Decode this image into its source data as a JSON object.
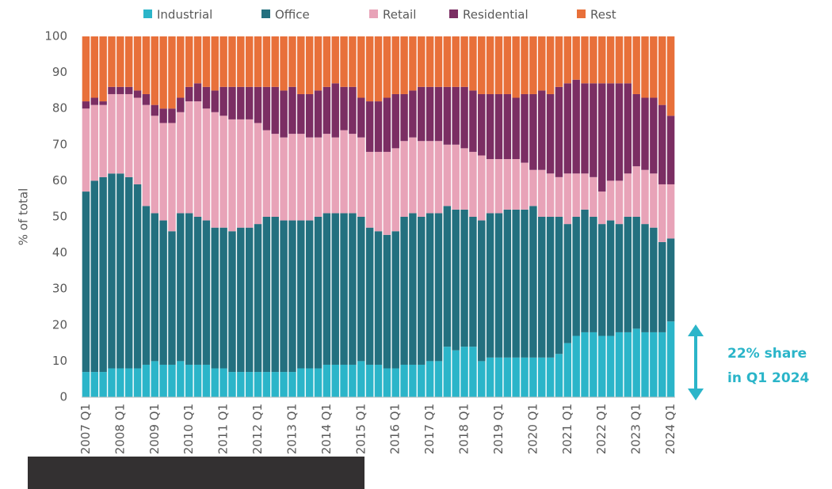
{
  "chart_data": {
    "type": "stacked_bar",
    "y_label": "% of total",
    "annotation": [
      "22% share",
      "in Q1 2024"
    ],
    "categories": [
      "2007 Q1",
      null,
      null,
      null,
      "2008 Q1",
      null,
      null,
      null,
      "2009 Q1",
      null,
      null,
      null,
      "2010 Q1",
      null,
      null,
      null,
      "2011 Q1",
      null,
      null,
      null,
      "2012 Q1",
      null,
      null,
      null,
      "2013 Q1",
      null,
      null,
      null,
      "2014 Q1",
      null,
      null,
      null,
      "2015 Q1",
      null,
      null,
      null,
      "2016 Q1",
      null,
      null,
      null,
      "2017 Q1",
      null,
      null,
      null,
      "2018 Q1",
      null,
      null,
      null,
      "2019 Q1",
      null,
      null,
      null,
      "2020 Q1",
      null,
      null,
      null,
      "2021 Q1",
      null,
      null,
      null,
      "2022 Q1",
      null,
      null,
      null,
      "2023 Q1",
      null,
      null,
      null,
      "2024 Q1"
    ],
    "series": [
      {
        "name": "Industrial",
        "color": "#2bb5c9",
        "values": [
          7,
          7,
          7,
          8,
          8,
          8,
          8,
          9,
          10,
          9,
          9,
          10,
          9,
          9,
          9,
          8,
          8,
          7,
          7,
          7,
          7,
          7,
          7,
          7,
          7,
          8,
          8,
          8,
          9,
          9,
          9,
          9,
          10,
          9,
          9,
          8,
          8,
          9,
          9,
          9,
          10,
          10,
          14,
          13,
          14,
          14,
          10,
          11,
          11,
          11,
          11,
          11,
          11,
          11,
          11,
          12,
          15,
          17,
          18,
          18,
          17,
          17,
          18,
          18,
          19,
          18,
          18,
          18,
          21
        ]
      },
      {
        "name": "Office",
        "color": "#23707f",
        "values": [
          50,
          53,
          54,
          54,
          54,
          53,
          51,
          44,
          41,
          40,
          37,
          41,
          42,
          41,
          40,
          39,
          39,
          39,
          40,
          40,
          41,
          43,
          43,
          42,
          42,
          41,
          41,
          42,
          42,
          42,
          42,
          42,
          40,
          38,
          37,
          37,
          38,
          41,
          42,
          41,
          41,
          41,
          39,
          39,
          38,
          36,
          39,
          40,
          40,
          41,
          41,
          41,
          42,
          39,
          39,
          38,
          33,
          33,
          34,
          32,
          31,
          32,
          30,
          32,
          31,
          30,
          29,
          25,
          23
        ]
      },
      {
        "name": "Retail",
        "color": "#e8a3b8",
        "values": [
          23,
          21,
          20,
          22,
          22,
          23,
          24,
          28,
          27,
          27,
          30,
          28,
          31,
          32,
          31,
          32,
          31,
          31,
          30,
          30,
          28,
          24,
          23,
          23,
          24,
          24,
          23,
          22,
          22,
          21,
          23,
          22,
          22,
          21,
          22,
          23,
          23,
          21,
          21,
          21,
          20,
          20,
          17,
          18,
          17,
          18,
          18,
          15,
          15,
          14,
          14,
          13,
          10,
          13,
          12,
          11,
          14,
          12,
          10,
          11,
          9,
          11,
          12,
          12,
          14,
          15,
          15,
          16,
          15
        ]
      },
      {
        "name": "Residential",
        "color": "#7b2e63",
        "values": [
          2,
          2,
          1,
          2,
          2,
          2,
          2,
          3,
          3,
          4,
          4,
          4,
          4,
          5,
          6,
          6,
          8,
          9,
          9,
          9,
          10,
          12,
          13,
          13,
          13,
          11,
          12,
          13,
          13,
          15,
          12,
          13,
          11,
          14,
          14,
          15,
          15,
          13,
          13,
          15,
          15,
          15,
          16,
          16,
          17,
          17,
          17,
          18,
          18,
          18,
          17,
          19,
          21,
          22,
          22,
          25,
          25,
          26,
          25,
          26,
          30,
          27,
          27,
          25,
          20,
          20,
          21,
          22,
          19
        ]
      },
      {
        "name": "Rest",
        "color": "#e8703a",
        "values": [
          18,
          17,
          18,
          14,
          14,
          14,
          15,
          16,
          19,
          20,
          20,
          17,
          14,
          13,
          14,
          15,
          14,
          14,
          14,
          14,
          14,
          14,
          14,
          15,
          14,
          16,
          16,
          15,
          14,
          13,
          14,
          14,
          17,
          18,
          18,
          17,
          16,
          16,
          15,
          14,
          14,
          14,
          14,
          14,
          14,
          15,
          16,
          16,
          16,
          16,
          17,
          16,
          16,
          15,
          16,
          14,
          13,
          12,
          13,
          13,
          13,
          13,
          13,
          13,
          16,
          17,
          17,
          19,
          22
        ]
      }
    ],
    "ylim": [
      0,
      100
    ],
    "yticks": [
      0,
      10,
      20,
      30,
      40,
      50,
      60,
      70,
      80,
      90,
      100
    ],
    "grid": false
  }
}
